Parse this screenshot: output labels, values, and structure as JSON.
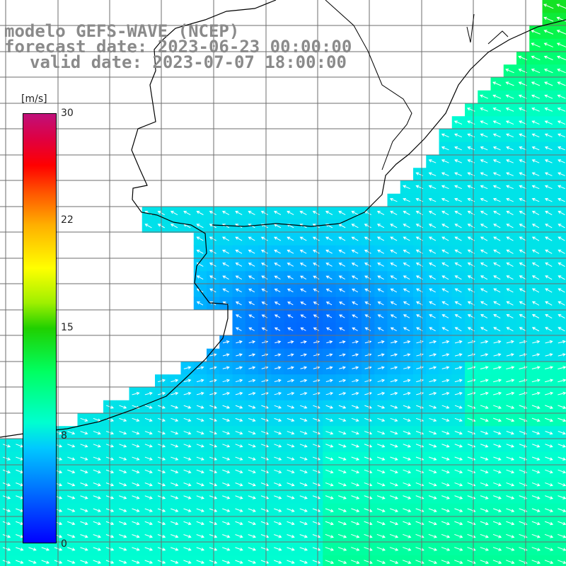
{
  "title": {
    "line1": "modelo GEFS-WAVE (NCEP)",
    "line2": "forecast date: 2023-06-23 00:00:00",
    "line3": "valid date: 2023-07-07 18:00:00"
  },
  "colorbar": {
    "unit": "[m/s]",
    "ticks": [
      "30",
      "22",
      "15",
      "8",
      "0"
    ],
    "tick_values": [
      30,
      22,
      15,
      8,
      0
    ]
  },
  "colors": {
    "land": "#ffffff",
    "grid": "#6e6e6e",
    "coast": "#000000",
    "arrows": "#ffffff"
  }
}
